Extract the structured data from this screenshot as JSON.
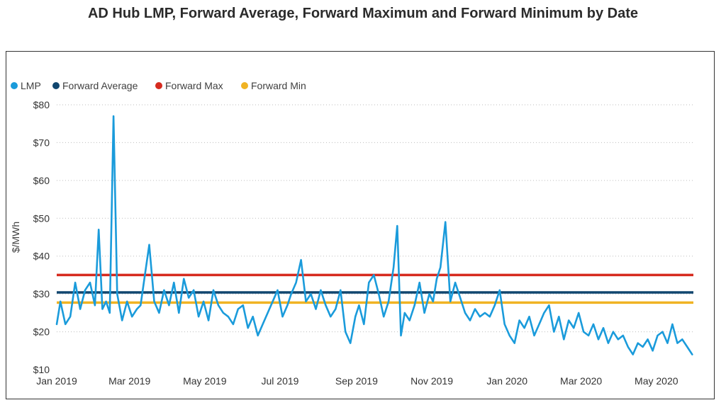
{
  "title": "AD Hub LMP, Forward Average, Forward Maximum and Forward Minimum by Date",
  "colors": {
    "lmp": "#1a9bdb",
    "forward_average": "#10466f",
    "forward_max": "#d62b1f",
    "forward_min": "#f0b323",
    "grid": "#bdbdbd"
  },
  "chart_data": {
    "type": "line",
    "title": "AD Hub LMP, Forward Average, Forward Maximum and Forward Minimum by Date",
    "xlabel": "",
    "ylabel": "$/MWh",
    "ylim": [
      10,
      80
    ],
    "xlim": [
      "2019-01-01",
      "2020-05-31"
    ],
    "y_ticks": [
      10,
      20,
      30,
      40,
      50,
      60,
      70,
      80
    ],
    "y_tick_labels": [
      "$10",
      "$20",
      "$30",
      "$40",
      "$50",
      "$60",
      "$70",
      "$80"
    ],
    "x_ticks": [
      "2019-01-01",
      "2019-03-01",
      "2019-05-01",
      "2019-07-01",
      "2019-09-01",
      "2019-11-01",
      "2020-01-01",
      "2020-03-01",
      "2020-05-01"
    ],
    "x_tick_labels": [
      "Jan 2019",
      "Mar 2019",
      "May 2019",
      "Jul 2019",
      "Sep 2019",
      "Nov 2019",
      "Jan 2020",
      "Mar 2020",
      "May 2020"
    ],
    "grid": "horizontal dotted",
    "legend_position": "top-left",
    "legend": [
      "LMP",
      "Forward Average",
      "Forward Max",
      "Forward Min"
    ],
    "series": [
      {
        "name": "LMP",
        "x": [
          "2019-01-01",
          "2019-01-04",
          "2019-01-08",
          "2019-01-12",
          "2019-01-16",
          "2019-01-20",
          "2019-01-24",
          "2019-01-28",
          "2019-02-01",
          "2019-02-04",
          "2019-02-07",
          "2019-02-10",
          "2019-02-13",
          "2019-02-16",
          "2019-02-19",
          "2019-02-23",
          "2019-02-27",
          "2019-03-03",
          "2019-03-07",
          "2019-03-10",
          "2019-03-13",
          "2019-03-17",
          "2019-03-21",
          "2019-03-25",
          "2019-03-29",
          "2019-04-02",
          "2019-04-06",
          "2019-04-10",
          "2019-04-14",
          "2019-04-18",
          "2019-04-22",
          "2019-04-26",
          "2019-04-30",
          "2019-05-04",
          "2019-05-08",
          "2019-05-12",
          "2019-05-16",
          "2019-05-20",
          "2019-05-24",
          "2019-05-28",
          "2019-06-01",
          "2019-06-05",
          "2019-06-09",
          "2019-06-13",
          "2019-06-17",
          "2019-06-21",
          "2019-06-25",
          "2019-06-29",
          "2019-07-03",
          "2019-07-07",
          "2019-07-10",
          "2019-07-14",
          "2019-07-18",
          "2019-07-22",
          "2019-07-26",
          "2019-07-30",
          "2019-08-03",
          "2019-08-07",
          "2019-08-11",
          "2019-08-15",
          "2019-08-19",
          "2019-08-23",
          "2019-08-27",
          "2019-08-31",
          "2019-09-03",
          "2019-09-07",
          "2019-09-11",
          "2019-09-15",
          "2019-09-19",
          "2019-09-23",
          "2019-09-27",
          "2019-10-01",
          "2019-10-04",
          "2019-10-07",
          "2019-10-10",
          "2019-10-14",
          "2019-10-18",
          "2019-10-22",
          "2019-10-26",
          "2019-10-30",
          "2019-11-02",
          "2019-11-05",
          "2019-11-08",
          "2019-11-12",
          "2019-11-16",
          "2019-11-20",
          "2019-11-24",
          "2019-11-28",
          "2019-12-02",
          "2019-12-06",
          "2019-12-10",
          "2019-12-14",
          "2019-12-18",
          "2019-12-22",
          "2019-12-26",
          "2019-12-30",
          "2020-01-03",
          "2020-01-07",
          "2020-01-11",
          "2020-01-15",
          "2020-01-19",
          "2020-01-23",
          "2020-01-27",
          "2020-01-31",
          "2020-02-04",
          "2020-02-08",
          "2020-02-12",
          "2020-02-16",
          "2020-02-20",
          "2020-02-24",
          "2020-02-28",
          "2020-03-03",
          "2020-03-07",
          "2020-03-11",
          "2020-03-15",
          "2020-03-19",
          "2020-03-23",
          "2020-03-27",
          "2020-03-31",
          "2020-04-04",
          "2020-04-08",
          "2020-04-12",
          "2020-04-16",
          "2020-04-20",
          "2020-04-24",
          "2020-04-28",
          "2020-05-02",
          "2020-05-06",
          "2020-05-10",
          "2020-05-14",
          "2020-05-18",
          "2020-05-22",
          "2020-05-26",
          "2020-05-30"
        ],
        "y": [
          22,
          28,
          22,
          24,
          33,
          26,
          31,
          33,
          27,
          47,
          26,
          28,
          25,
          77,
          30,
          23,
          28,
          24,
          26,
          27,
          34,
          43,
          28,
          25,
          31,
          27,
          33,
          25,
          34,
          29,
          31,
          24,
          28,
          23,
          31,
          27,
          25,
          24,
          22,
          26,
          27,
          21,
          24,
          19,
          22,
          25,
          28,
          31,
          24,
          27,
          30,
          33,
          39,
          28,
          30,
          26,
          31,
          27,
          24,
          26,
          31,
          20,
          17,
          24,
          27,
          22,
          33,
          35,
          30,
          24,
          28,
          37,
          48,
          19,
          25,
          23,
          27,
          33,
          25,
          30,
          28,
          34,
          37,
          49,
          28,
          33,
          29,
          25,
          23,
          26,
          24,
          25,
          24,
          27,
          31,
          22,
          19,
          17,
          23,
          21,
          24,
          19,
          22,
          25,
          27,
          20,
          24,
          18,
          23,
          21,
          25,
          20,
          19,
          22,
          18,
          21,
          17,
          20,
          18,
          19,
          16,
          14,
          17,
          16,
          18,
          15,
          19,
          20,
          17,
          22,
          17,
          18,
          16,
          14
        ]
      },
      {
        "name": "Forward Average",
        "y": 30.4
      },
      {
        "name": "Forward Max",
        "y": 35
      },
      {
        "name": "Forward Min",
        "y": 27.7
      }
    ]
  }
}
